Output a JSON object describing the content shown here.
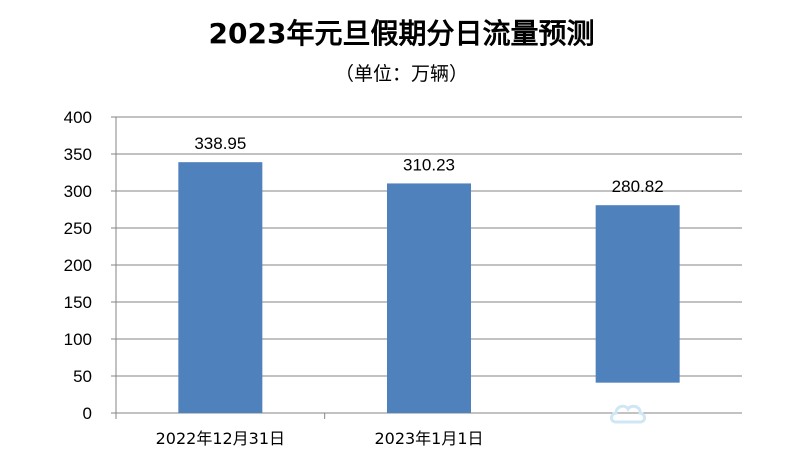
{
  "chart_data": {
    "type": "bar",
    "title": "2023年元旦假期分日流量预测",
    "subtitle": "（单位：万辆）",
    "categories": [
      "2022年12月31日",
      "2023年1月1日",
      ""
    ],
    "values": [
      338.95,
      310.23,
      280.82
    ],
    "data_labels": [
      "338.95",
      "310.23",
      "280.82"
    ],
    "ylim": [
      0,
      400
    ],
    "yticks": [
      0,
      50,
      100,
      150,
      200,
      250,
      300,
      350,
      400
    ],
    "grid": true,
    "legend": "none",
    "bar_color": "#4f81bd",
    "grid_color": "#868686"
  },
  "watermark": {
    "icon": "cloud-icon",
    "color": "#cfe6f5"
  }
}
